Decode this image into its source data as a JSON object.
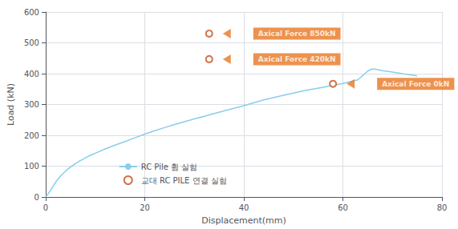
{
  "chart_data": {
    "type": "line",
    "xlabel": "Displacement(mm)",
    "ylabel": "Load (kN)",
    "xlim": [
      0,
      80
    ],
    "ylim": [
      0,
      600
    ],
    "xticks": [
      0,
      20,
      40,
      60,
      80
    ],
    "yticks": [
      0,
      100,
      200,
      300,
      400,
      500,
      600
    ],
    "grid": true,
    "legend": "bottom",
    "series": [
      {
        "name": "RC Pile 휨 실험",
        "type": "line",
        "color": "#87CEEB",
        "x": [
          0,
          0.5,
          1,
          1.5,
          2,
          3,
          4,
          5,
          6,
          7,
          8,
          9,
          10,
          12,
          14,
          16,
          18,
          20,
          22,
          24,
          26,
          28,
          30,
          33,
          36,
          40,
          44,
          48,
          52,
          56,
          60,
          63,
          65,
          65.5,
          66,
          66.5,
          67,
          68,
          70,
          72,
          75
        ],
        "values": [
          0,
          10,
          22,
          35,
          48,
          68,
          84,
          97,
          108,
          118,
          127,
          135,
          142,
          156,
          168,
          180,
          192,
          204,
          215,
          225,
          235,
          244,
          253,
          266,
          279,
          296,
          315,
          330,
          344,
          356,
          368,
          380,
          408,
          413,
          415,
          415,
          413,
          410,
          405,
          400,
          393
        ]
      },
      {
        "name": "교대 RC PILE 연결 실험",
        "type": "scatter",
        "color": "#C8501A",
        "marker": "circle",
        "x": [
          33,
          33,
          58
        ],
        "values": [
          530,
          447,
          367
        ]
      }
    ],
    "annotations": [
      {
        "text": "Axical Force 850kN",
        "x": 33,
        "y": 530,
        "color": "#E87722"
      },
      {
        "text": "Axical Force 420kN",
        "x": 33,
        "y": 447,
        "color": "#E87722"
      },
      {
        "text": "Axical Force 0kN",
        "x": 58,
        "y": 367,
        "color": "#E87722"
      }
    ]
  }
}
